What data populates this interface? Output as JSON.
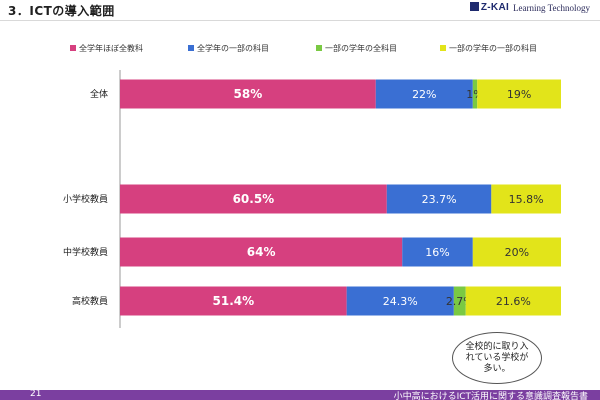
{
  "header": {
    "title": "3．ICTの導入範囲",
    "logo_mark": "Z-KAI",
    "logo_text": "Learning Technology"
  },
  "colors": {
    "全学年ほぼ全教科": "#d6407f",
    "全学年の一部の科目": "#3a6fd3",
    "一部の学年の全科目": "#7ac943",
    "一部の学年の一部の科目": "#e2e41a"
  },
  "chart_data": {
    "type": "bar",
    "orientation": "horizontal",
    "stacked": true,
    "title": "",
    "xlabel": "",
    "ylabel": "",
    "xlim": [
      0,
      100
    ],
    "legend_position": "top",
    "categories": [
      "全体",
      "小学校教員",
      "中学校教員",
      "高校教員"
    ],
    "series": [
      {
        "name": "全学年ほぼ全教科",
        "values": [
          58,
          60.5,
          64,
          51.4
        ],
        "labels": [
          "58%",
          "60.5%",
          "64%",
          "51.4%"
        ]
      },
      {
        "name": "全学年の一部の科目",
        "values": [
          22,
          23.7,
          16,
          24.3
        ],
        "labels": [
          "22%",
          "23.7%",
          "16%",
          "24.3%"
        ]
      },
      {
        "name": "一部の学年の全科目",
        "values": [
          1,
          0,
          0,
          2.7
        ],
        "labels": [
          "1%",
          "",
          "",
          "2.7%"
        ]
      },
      {
        "name": "一部の学年の一部の科目",
        "values": [
          19,
          15.8,
          20,
          21.6
        ],
        "labels": [
          "19%",
          "15.8%",
          "20%",
          "21.6%"
        ]
      }
    ]
  },
  "callout": {
    "text": "全校的に取り入れている学校が多い。"
  },
  "footer": {
    "page_number": "21",
    "title": "小中高におけるICT活用に関する意識調査報告書"
  }
}
